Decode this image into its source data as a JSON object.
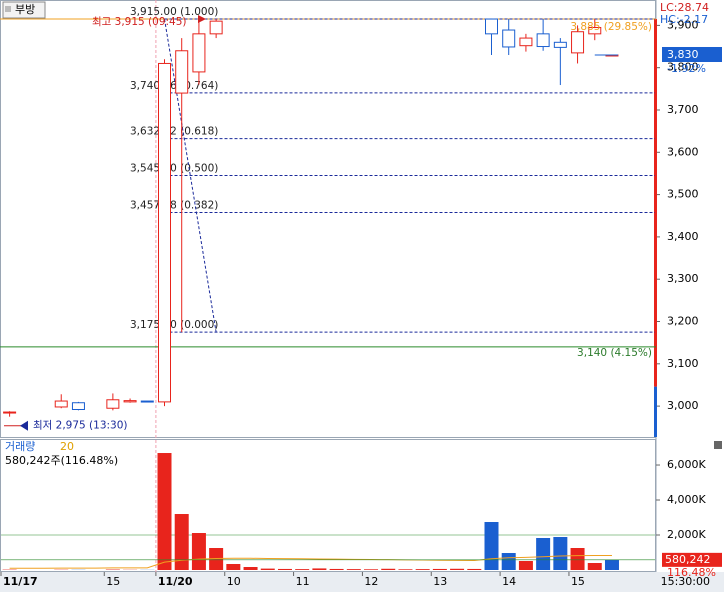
{
  "chart_data": [
    {
      "type": "candlestick",
      "title": "부방",
      "categories": [
        "11/17",
        null,
        null,
        null,
        null,
        null,
        "15",
        null,
        null,
        "11/20",
        null,
        null,
        null,
        "10",
        null,
        null,
        null,
        "11",
        null,
        null,
        null,
        "12",
        null,
        null,
        null,
        "13",
        null,
        null,
        null,
        "14",
        null,
        null,
        null,
        "15",
        null,
        null,
        null,
        null
      ],
      "ohlc": [
        [
          2985,
          2988,
          2975,
          2986
        ],
        null,
        null,
        [
          2998,
          3028,
          2995,
          3012
        ],
        [
          3008,
          3010,
          2990,
          2992
        ],
        null,
        [
          2995,
          3030,
          2990,
          3015
        ],
        [
          3010,
          3018,
          3008,
          3013
        ],
        [
          3012,
          3012,
          3010,
          3010
        ],
        [
          3010,
          3820,
          3000,
          3810
        ],
        [
          3740,
          3870,
          3175,
          3840
        ],
        [
          3790,
          3915,
          3760,
          3880
        ],
        [
          3880,
          3915,
          3870,
          3910
        ],
        null,
        null,
        null,
        null,
        null,
        null,
        null,
        null,
        null,
        null,
        null,
        null,
        null,
        null,
        null,
        [
          3915,
          3915,
          3830,
          3880
        ],
        [
          3889,
          3915,
          3830,
          3849
        ],
        [
          3852,
          3880,
          3838,
          3870
        ],
        [
          3880,
          3915,
          3840,
          3850
        ],
        [
          3860,
          3870,
          3759,
          3848
        ],
        [
          3835,
          3900,
          3810,
          3885
        ],
        [
          3880,
          3915,
          3865,
          3895
        ],
        [
          3830,
          3830,
          3830,
          3830
        ],
        null,
        null
      ],
      "up_color": "#e8241c",
      "down_color": "#1a5fd0",
      "ylim": [
        2927,
        3960
      ],
      "yticks": [
        {
          "value": 3000,
          "label": "3,000"
        },
        {
          "value": 3100,
          "label": "3,100"
        },
        {
          "value": 3200,
          "label": "3,200"
        },
        {
          "value": 3300,
          "label": "3,300"
        },
        {
          "value": 3400,
          "label": "3,400"
        },
        {
          "value": 3500,
          "label": "3,500"
        },
        {
          "value": 3600,
          "label": "3,600"
        },
        {
          "value": 3700,
          "label": "3,700"
        },
        {
          "value": 3800,
          "label": "3,800"
        },
        {
          "value": 3900,
          "label": "3,900"
        }
      ],
      "fib_levels": [
        {
          "value": 3915,
          "label": "3,915.00 (1.000)"
        },
        {
          "value": 3740.36,
          "label": "3,740.36 (0.764)"
        },
        {
          "value": 3632.32,
          "label": "3,632.32 (0.618)"
        },
        {
          "value": 3545,
          "label": "3,545.00 (0.500)"
        },
        {
          "value": 3457.68,
          "label": "3,457.68 (0.382)"
        },
        {
          "value": 3175,
          "label": "3,175.00 (0.000)"
        }
      ],
      "high": {
        "value": 3915,
        "label": "최고 3,915 (09:45)"
      },
      "low": {
        "value": 2975,
        "label": "최저 2,975 (13:30)"
      },
      "last_label": "3,885 (29.85%)",
      "ref_line": {
        "value": 3140,
        "label": "3,140 (4.15%)"
      },
      "current": {
        "value": 3830,
        "label": "3,830",
        "change": "-1.92%"
      },
      "lc": "LC:28.74",
      "hc": "HC:-2.17"
    },
    {
      "type": "bar",
      "title": "거래량",
      "ma_period": "20",
      "summary": "580,242주(116.48%)",
      "values": [
        20,
        null,
        null,
        15,
        10,
        null,
        25,
        12,
        8,
        6686,
        3200,
        2114,
        1257,
        343,
        171,
        80,
        60,
        50,
        90,
        60,
        50,
        40,
        70,
        40,
        50,
        60,
        70,
        60,
        2743,
        971,
        514,
        1829,
        1886,
        1257,
        400,
        580,
        null,
        null
      ],
      "colors": [
        "#e8241c",
        "#e8241c",
        "#e8241c",
        "#e8241c",
        "#1a5fd0",
        "#e8241c",
        "#e8241c",
        "#e8241c",
        "#1a5fd0",
        "#e8241c",
        "#e8241c",
        "#e8241c",
        "#e8241c",
        "#e8241c",
        "#e8241c",
        "#e8241c",
        "#e8241c",
        "#e8241c",
        "#e8241c",
        "#e8241c",
        "#e8241c",
        "#e8241c",
        "#e8241c",
        "#e8241c",
        "#e8241c",
        "#e8241c",
        "#e8241c",
        "#e8241c",
        "#1a5fd0",
        "#1a5fd0",
        "#e8241c",
        "#1a5fd0",
        "#1a5fd0",
        "#e8241c",
        "#e8241c",
        "#1a5fd0",
        "#e8241c",
        "#e8241c"
      ],
      "ma": [
        100,
        100,
        100,
        110,
        110,
        110,
        120,
        120,
        120,
        450,
        560,
        620,
        660,
        670,
        670,
        660,
        650,
        640,
        630,
        620,
        610,
        600,
        590,
        580,
        570,
        560,
        550,
        540,
        640,
        700,
        720,
        760,
        800,
        820,
        830,
        830,
        null,
        null
      ],
      "ma_color": "#f0a020",
      "ylim": [
        0,
        7430
      ],
      "yticks": [
        {
          "value": 2000,
          "label": "2,000K"
        },
        {
          "value": 4000,
          "label": "4,000K"
        },
        {
          "value": 6000,
          "label": "6,000K"
        }
      ],
      "current": {
        "value": 580,
        "label": "580,242",
        "change": "116.48%"
      },
      "last_time": "15:30:00"
    }
  ]
}
